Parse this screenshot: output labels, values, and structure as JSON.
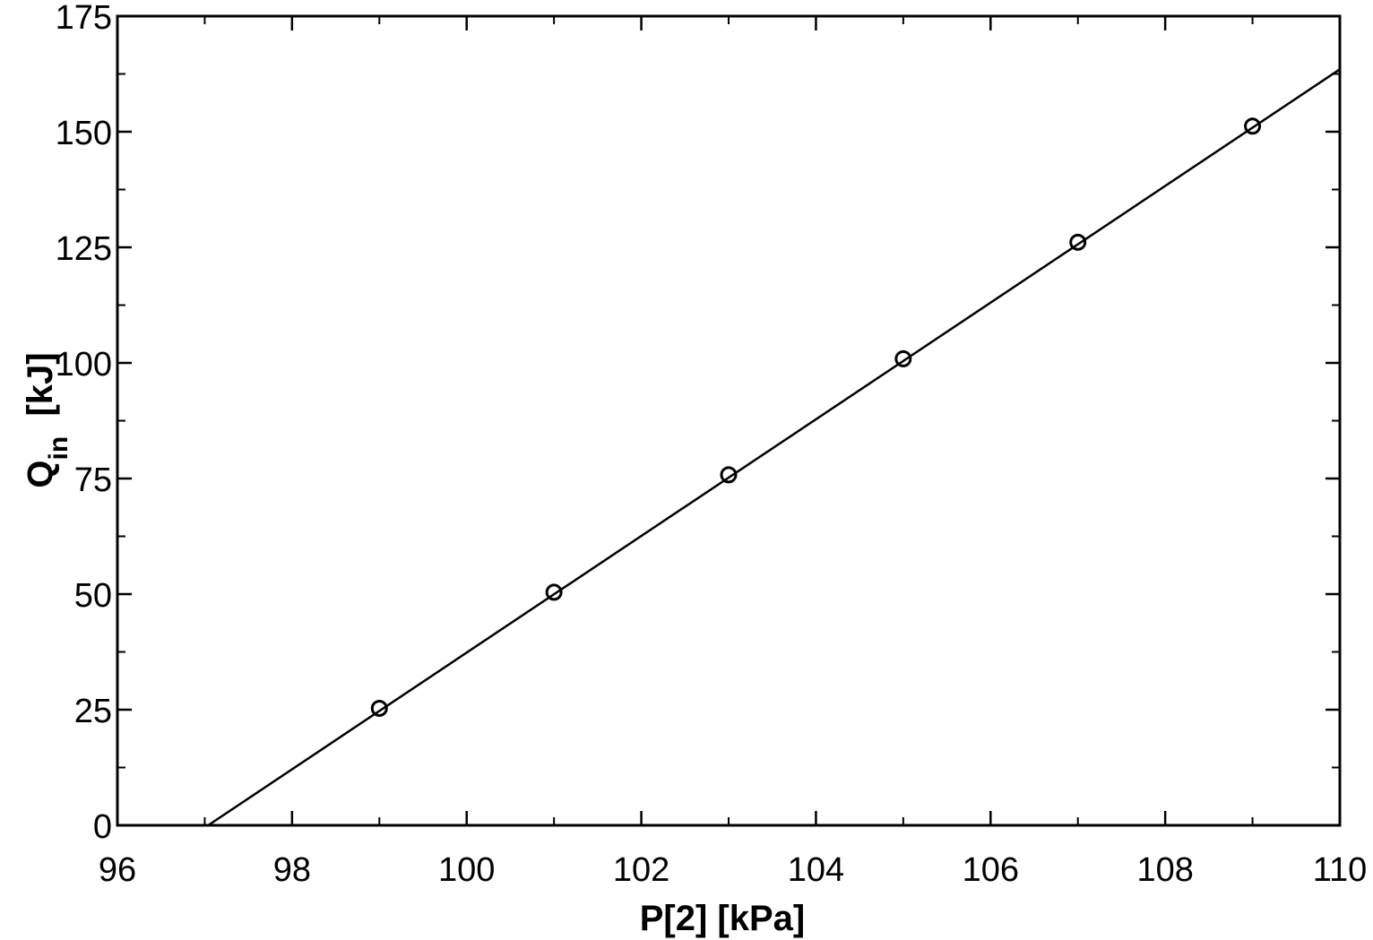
{
  "chart_data": {
    "type": "scatter",
    "xlabel": "P[2]  [kPa]",
    "ylabel": {
      "main": "Q",
      "subscript": "in",
      "unit": "  [kJ]"
    },
    "xlim": [
      96,
      110
    ],
    "ylim": [
      0,
      175
    ],
    "x_ticks": [
      "96",
      "98",
      "100",
      "102",
      "104",
      "106",
      "108",
      "110"
    ],
    "y_ticks": [
      "0",
      "25",
      "50",
      "75",
      "100",
      "125",
      "150",
      "175"
    ],
    "x_minor_step": 1,
    "y_minor_step": 12.5,
    "grid": false,
    "series": [
      {
        "kind": "points",
        "marker": "open-circle",
        "x": [
          99,
          101,
          103,
          105,
          107,
          109
        ],
        "y": [
          25.3,
          50.4,
          75.8,
          100.9,
          126.1,
          151.2
        ]
      },
      {
        "kind": "line",
        "x": [
          97.04,
          110
        ],
        "y": [
          0,
          163.5
        ]
      }
    ],
    "colors": {
      "line": "#000000",
      "marker": "#000000",
      "axes": "#000000",
      "background": "#ffffff"
    }
  }
}
